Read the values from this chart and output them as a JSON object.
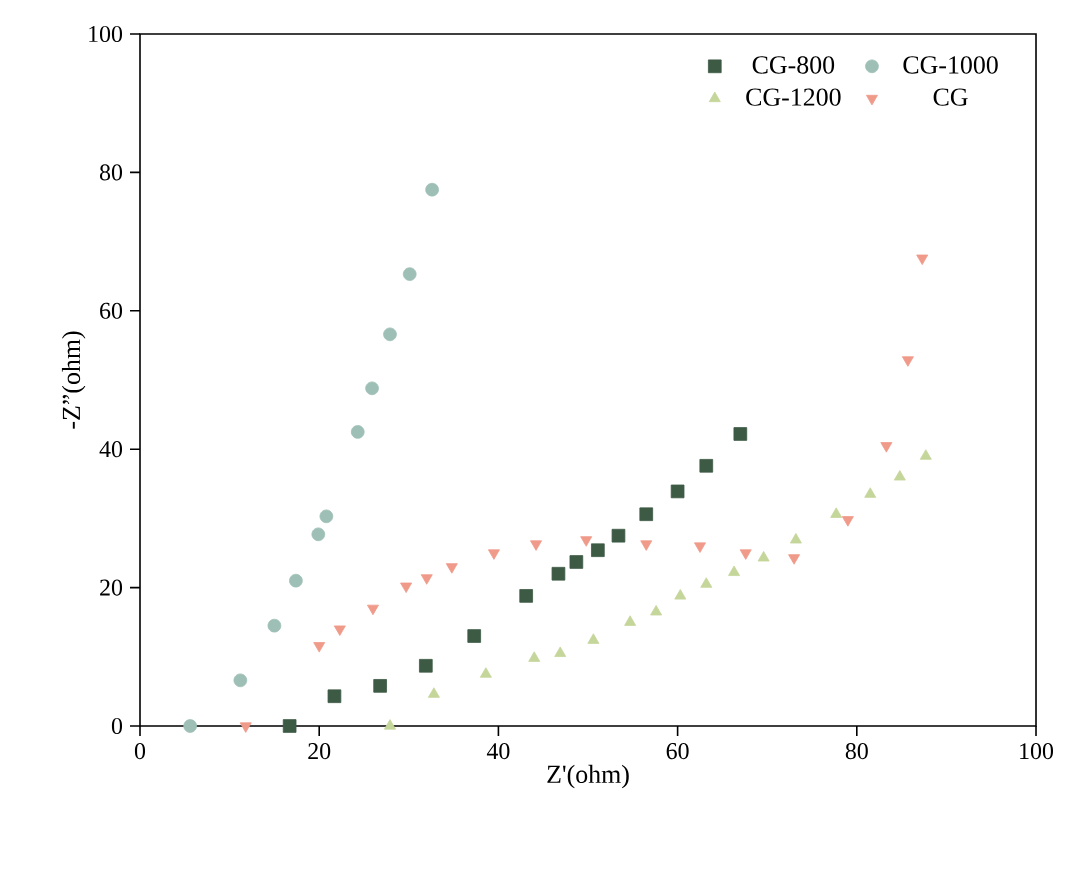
{
  "chart_data": {
    "type": "scatter",
    "xlabel": "Z'(ohm)",
    "ylabel": "-Z”(ohm)",
    "xlim": [
      0,
      100
    ],
    "ylim": [
      0,
      100
    ],
    "xticks": [
      0,
      20,
      40,
      60,
      80,
      100
    ],
    "yticks": [
      0,
      20,
      40,
      60,
      80,
      100
    ],
    "grid": false,
    "legend": "top right",
    "series": [
      {
        "name": "CG-800",
        "color": "#3d5a45",
        "marker": "square",
        "x": [
          16.7,
          21.7,
          26.8,
          31.9,
          37.3,
          43.1,
          46.7,
          48.7,
          51.1,
          53.4,
          56.5,
          60,
          63.2,
          67
        ],
        "values": [
          0,
          4.3,
          5.8,
          8.7,
          13,
          18.8,
          22,
          23.7,
          25.4,
          27.5,
          30.6,
          33.9,
          37.6,
          42.2
        ]
      },
      {
        "name": "CG-1000",
        "color": "#9dbfb5",
        "marker": "circle",
        "x": [
          5.6,
          11.2,
          15,
          17.4,
          19.9,
          20.8,
          24.3,
          25.9,
          27.9,
          30.1,
          32.6
        ],
        "values": [
          0,
          6.6,
          14.5,
          21,
          27.7,
          30.3,
          42.5,
          48.8,
          56.6,
          65.3,
          77.5
        ]
      },
      {
        "name": "CG-1200",
        "color": "#c5d69a",
        "marker": "triangle",
        "x": [
          27.9,
          32.8,
          38.6,
          44,
          46.9,
          50.6,
          54.7,
          57.6,
          60.3,
          63.2,
          66.3,
          69.6,
          73.2,
          77.7,
          81.5,
          84.8,
          87.7
        ],
        "values": [
          0,
          4.6,
          7.5,
          9.8,
          10.5,
          12.4,
          15,
          16.5,
          18.8,
          20.5,
          22.2,
          24.3,
          26.9,
          30.6,
          33.5,
          36,
          39
        ]
      },
      {
        "name": "CG",
        "color": "#f09a8a",
        "marker": "triangle down",
        "x": [
          11.8,
          20,
          22.3,
          26,
          29.7,
          32,
          34.8,
          39.5,
          44.2,
          49.8,
          56.5,
          62.5,
          67.6,
          73,
          79,
          83.3,
          85.7,
          87.3
        ],
        "values": [
          0,
          11.6,
          14,
          17,
          20.2,
          21.4,
          23,
          25,
          26.3,
          26.9,
          26.3,
          26,
          25,
          24.3,
          29.8,
          40.5,
          52.9,
          67.6
        ]
      }
    ]
  }
}
